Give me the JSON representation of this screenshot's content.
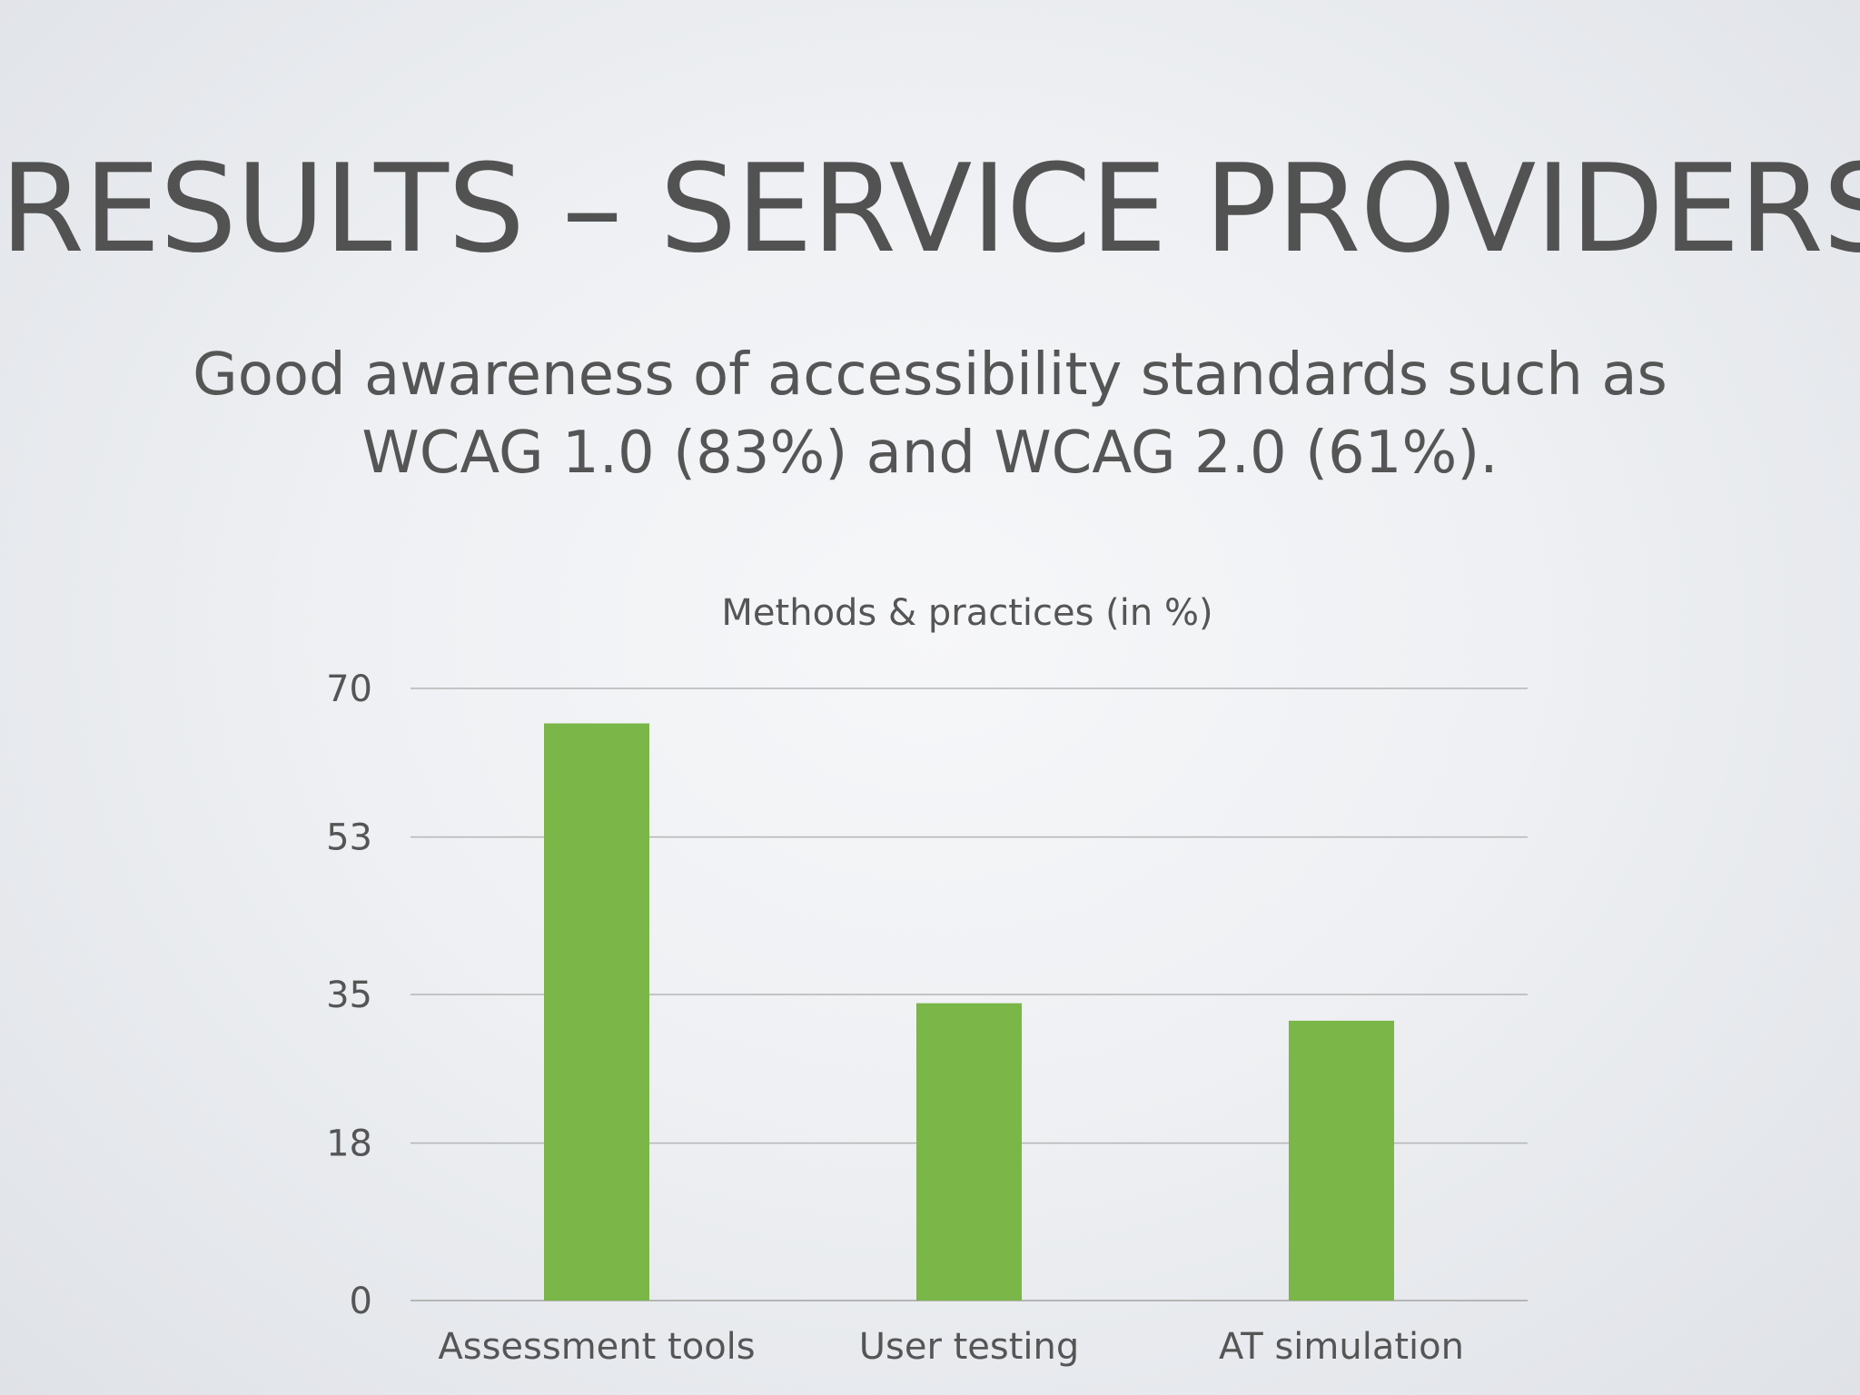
{
  "slide": {
    "title": "RESULTS – SERVICE PROVIDERS",
    "subtitle_line1": "Good awareness of accessibility standards such as",
    "subtitle_line2": "WCAG 1.0 (83%) and WCAG 2.0 (61%)."
  },
  "colors": {
    "bar": "#7ab648",
    "gridline": "#b5b5b5",
    "text": "#555555"
  },
  "chart_data": {
    "type": "bar",
    "title": "Methods & practices (in %)",
    "categories": [
      "Assessment tools",
      "User testing",
      "AT simulation"
    ],
    "values": [
      66,
      34,
      32
    ],
    "y_ticks": [
      "0",
      "18",
      "35",
      "53",
      "70"
    ],
    "ylim": [
      0,
      70
    ],
    "grid": true,
    "legend": "none"
  }
}
